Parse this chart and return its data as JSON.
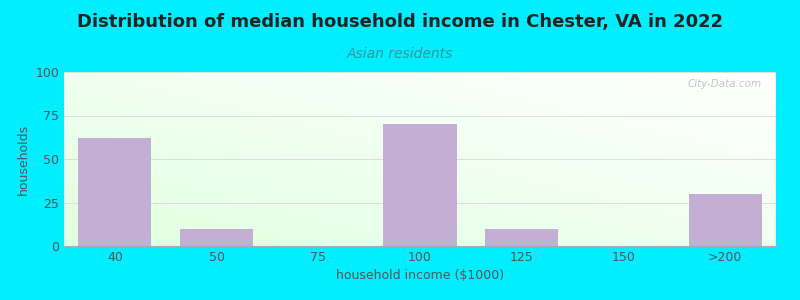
{
  "title": "Distribution of median household income in Chester, VA in 2022",
  "subtitle": "Asian residents",
  "xlabel": "household income ($1000)",
  "ylabel": "households",
  "categories": [
    "40",
    "50",
    "75",
    "100",
    "125",
    "150",
    ">200"
  ],
  "values": [
    62,
    10,
    0,
    70,
    10,
    0,
    30
  ],
  "bar_color": "#c4aed4",
  "background_outer": "#00eeff",
  "ylim": [
    0,
    100
  ],
  "yticks": [
    0,
    25,
    50,
    75,
    100
  ],
  "title_fontsize": 13,
  "subtitle_fontsize": 10,
  "axis_label_fontsize": 9,
  "tick_fontsize": 9,
  "watermark_text": "City-Data.com",
  "title_color": "#222222",
  "subtitle_color": "#339999",
  "tick_color": "#555555",
  "label_color": "#555555",
  "watermark_color": "#bbbbbb",
  "grid_color": "#dddddd"
}
